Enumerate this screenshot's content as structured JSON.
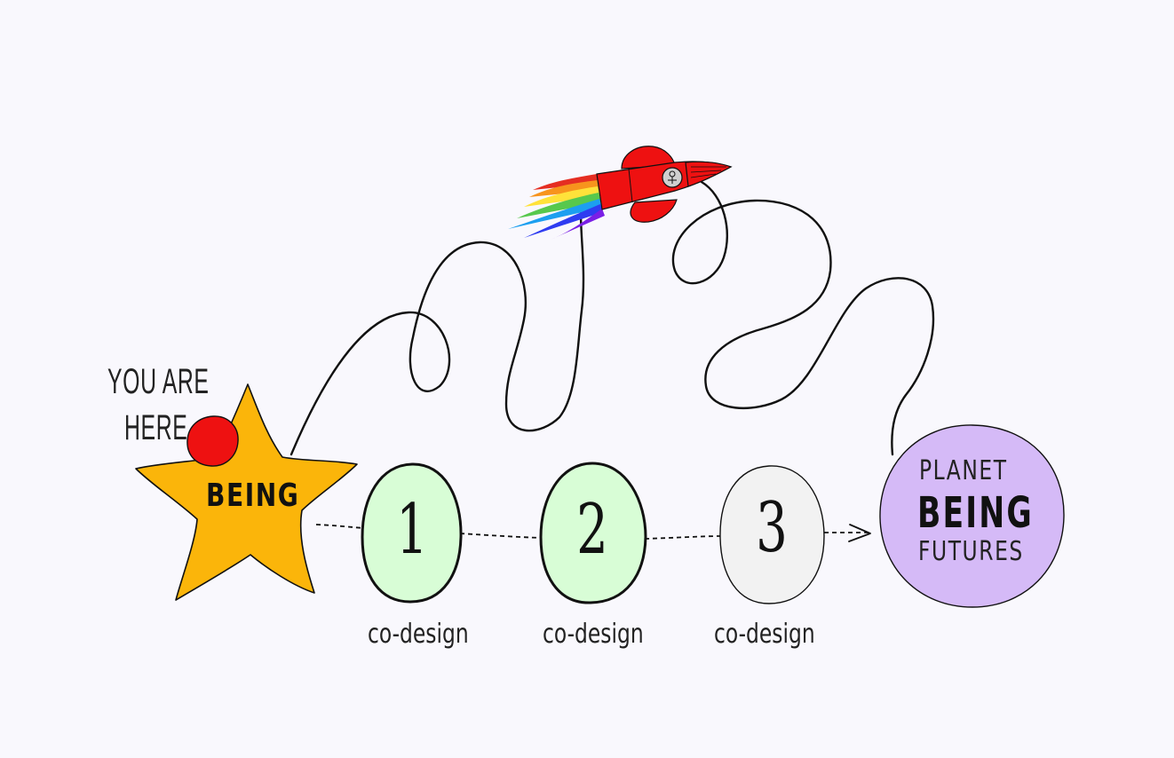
{
  "here": {
    "line1": "YOU ARE",
    "line2": "HERE"
  },
  "star": {
    "label": "BEING",
    "color": "#fbb50a",
    "dot_color": "#ee1111"
  },
  "steps": [
    {
      "number": "1",
      "caption": "co-design",
      "fill": "#d8fdd6"
    },
    {
      "number": "2",
      "caption": "co-design",
      "fill": "#d8fdd6"
    },
    {
      "number": "3",
      "caption": "co-design",
      "fill": "#f2f2f2"
    }
  ],
  "planet": {
    "line1": "PLANET",
    "line2": "BEING",
    "line3": "FUTURES",
    "fill": "#d5baf7"
  },
  "rocket": {
    "icon": "rocket-icon",
    "body_color": "#ee1111",
    "trail_colors": [
      "#e52e22",
      "#f7941d",
      "#ffe23a",
      "#57c84d",
      "#1c9ff0",
      "#2e3cf1",
      "#7a1fe6"
    ]
  }
}
